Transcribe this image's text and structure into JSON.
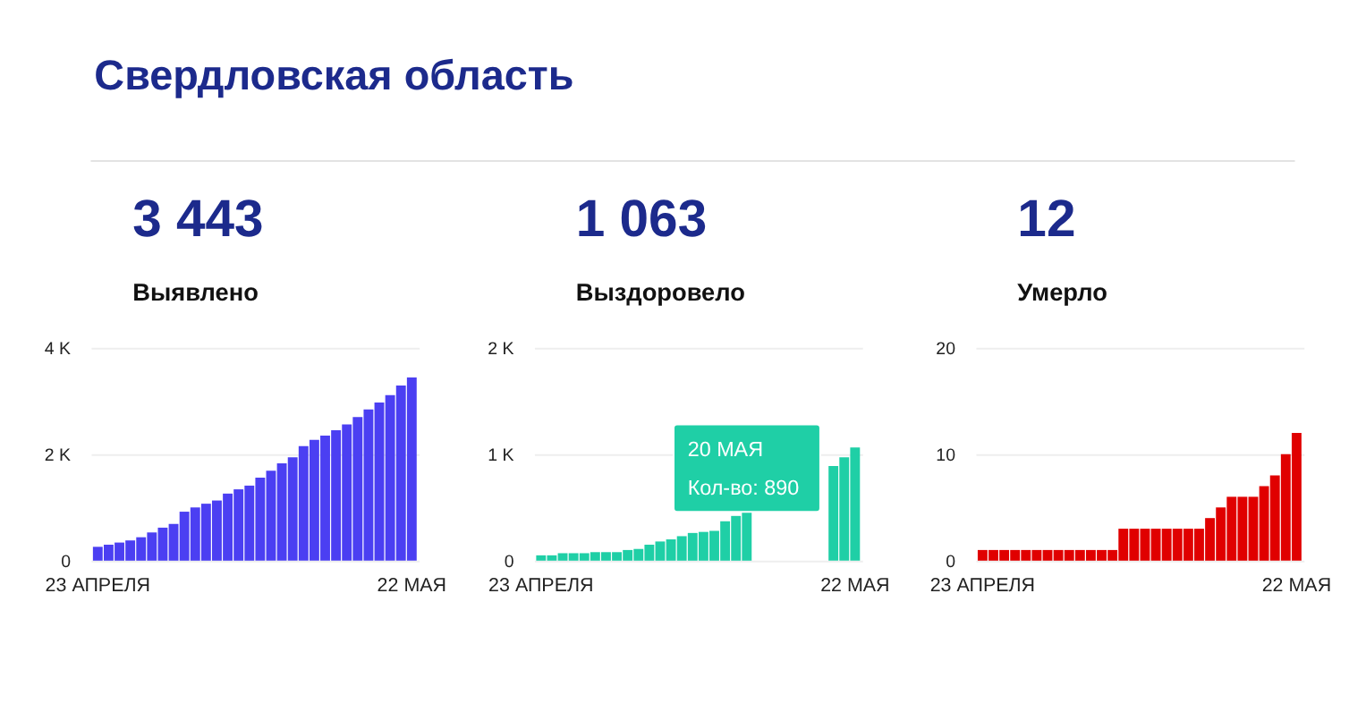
{
  "chart_data": [
    {
      "type": "other",
      "title": "Свердловская область"
    },
    {
      "type": "bar",
      "title": "3 443",
      "subtitle": "Выявлено",
      "color": "#4b3ff2",
      "categories": [
        "23 АПРЕЛЯ",
        null,
        null,
        null,
        null,
        null,
        null,
        null,
        null,
        null,
        null,
        null,
        null,
        null,
        null,
        null,
        null,
        null,
        null,
        null,
        null,
        null,
        null,
        null,
        null,
        null,
        null,
        null,
        null,
        "22 МАЯ"
      ],
      "values": [
        260,
        300,
        340,
        380,
        440,
        530,
        620,
        690,
        920,
        1000,
        1070,
        1130,
        1260,
        1340,
        1410,
        1560,
        1690,
        1830,
        1940,
        2150,
        2270,
        2350,
        2450,
        2560,
        2700,
        2840,
        2970,
        3110,
        3290,
        3443
      ],
      "ylim": [
        0,
        4000
      ],
      "yticks": [
        0,
        {
          "value": 2000,
          "label": "2 K"
        },
        {
          "value": 4000,
          "label": "4 K"
        }
      ],
      "grid": "y"
    },
    {
      "type": "bar",
      "title": "1 063",
      "subtitle": "Выздоровело",
      "color": "#1fcfa6",
      "categories": [
        "23 АПРЕЛЯ",
        null,
        null,
        null,
        null,
        null,
        null,
        null,
        null,
        null,
        null,
        null,
        null,
        null,
        null,
        null,
        null,
        null,
        null,
        null,
        null,
        null,
        null,
        null,
        null,
        null,
        null,
        null,
        null,
        "22 МАЯ"
      ],
      "values": [
        50,
        50,
        70,
        70,
        70,
        80,
        80,
        80,
        100,
        110,
        150,
        180,
        200,
        230,
        260,
        270,
        280,
        370,
        420,
        490,
        null,
        null,
        null,
        null,
        null,
        null,
        null,
        890,
        970,
        1063
      ],
      "ylim": [
        0,
        2000
      ],
      "yticks": [
        0,
        {
          "value": 1000,
          "label": "1 K"
        },
        {
          "value": 2000,
          "label": "2 K"
        }
      ],
      "grid": "y",
      "annotations": [
        "20 МАЯ",
        "Кол-во: 890"
      ]
    },
    {
      "type": "bar",
      "title": "12",
      "subtitle": "Умерло",
      "color": "#e00000",
      "categories": [
        "23 АПРЕЛЯ",
        null,
        null,
        null,
        null,
        null,
        null,
        null,
        null,
        null,
        null,
        null,
        null,
        null,
        null,
        null,
        null,
        null,
        null,
        null,
        null,
        null,
        null,
        null,
        null,
        null,
        null,
        null,
        null,
        "22 МАЯ"
      ],
      "values": [
        1,
        1,
        1,
        1,
        1,
        1,
        1,
        1,
        1,
        1,
        1,
        1,
        1,
        3,
        3,
        3,
        3,
        3,
        3,
        3,
        3,
        4,
        5,
        6,
        6,
        6,
        7,
        8,
        10,
        12
      ],
      "ylim": [
        0,
        20
      ],
      "yticks": [
        0,
        10,
        20
      ],
      "grid": "y"
    }
  ]
}
